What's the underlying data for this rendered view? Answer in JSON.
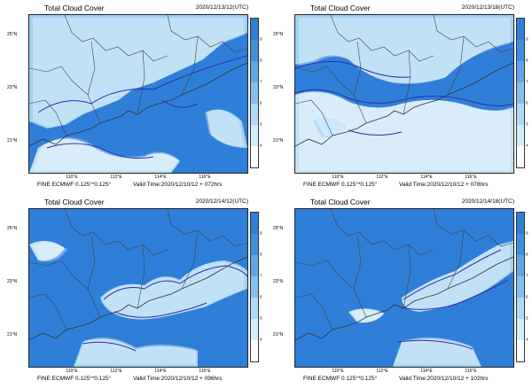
{
  "panels": [
    {
      "title": "Total Cloud Cover",
      "date": "2020/12/13/12(UTC)",
      "model": "FINE ECMWF 0.125°*0.125°",
      "valid": "Valid Time:2020/12/10/12 + 072hrs"
    },
    {
      "title": "Total Cloud Cover",
      "date": "2020/12/13/18(UTC)",
      "model": "FINE ECMWF 0.125°*0.125°",
      "valid": "Valid Time:2020/12/10/12 + 078hrs"
    },
    {
      "title": "Total Cloud Cover",
      "date": "2020/12/14/12(UTC)",
      "model": "FINE ECMWF 0.125°*0.125°",
      "valid": "Valid Time:2020/12/10/12 + 096hrs"
    },
    {
      "title": "Total Cloud Cover",
      "date": "2020/12/14/18(UTC)",
      "model": "FINE ECMWF 0.125°*0.125°",
      "valid": "Valid Time:2020/12/10/12 + 102hrs"
    }
  ],
  "axes": {
    "lat_labels": [
      "25°N",
      "23°N",
      "21°N"
    ],
    "lon_labels": [
      "110°E",
      "112°E",
      "114°E",
      "116°E"
    ]
  },
  "colorbar": {
    "ticks": [
      "9",
      "8",
      "7",
      "6",
      "5",
      "4"
    ],
    "colors": [
      "#2f7fd8",
      "#3f8fe0",
      "#5fa6e8",
      "#85bff0",
      "#addaf6",
      "#d4edfb",
      "#ffffff"
    ]
  },
  "colors": {
    "cloud_free": "#2f7fd8",
    "contour": "#2f2fa8",
    "border": "#444444"
  }
}
